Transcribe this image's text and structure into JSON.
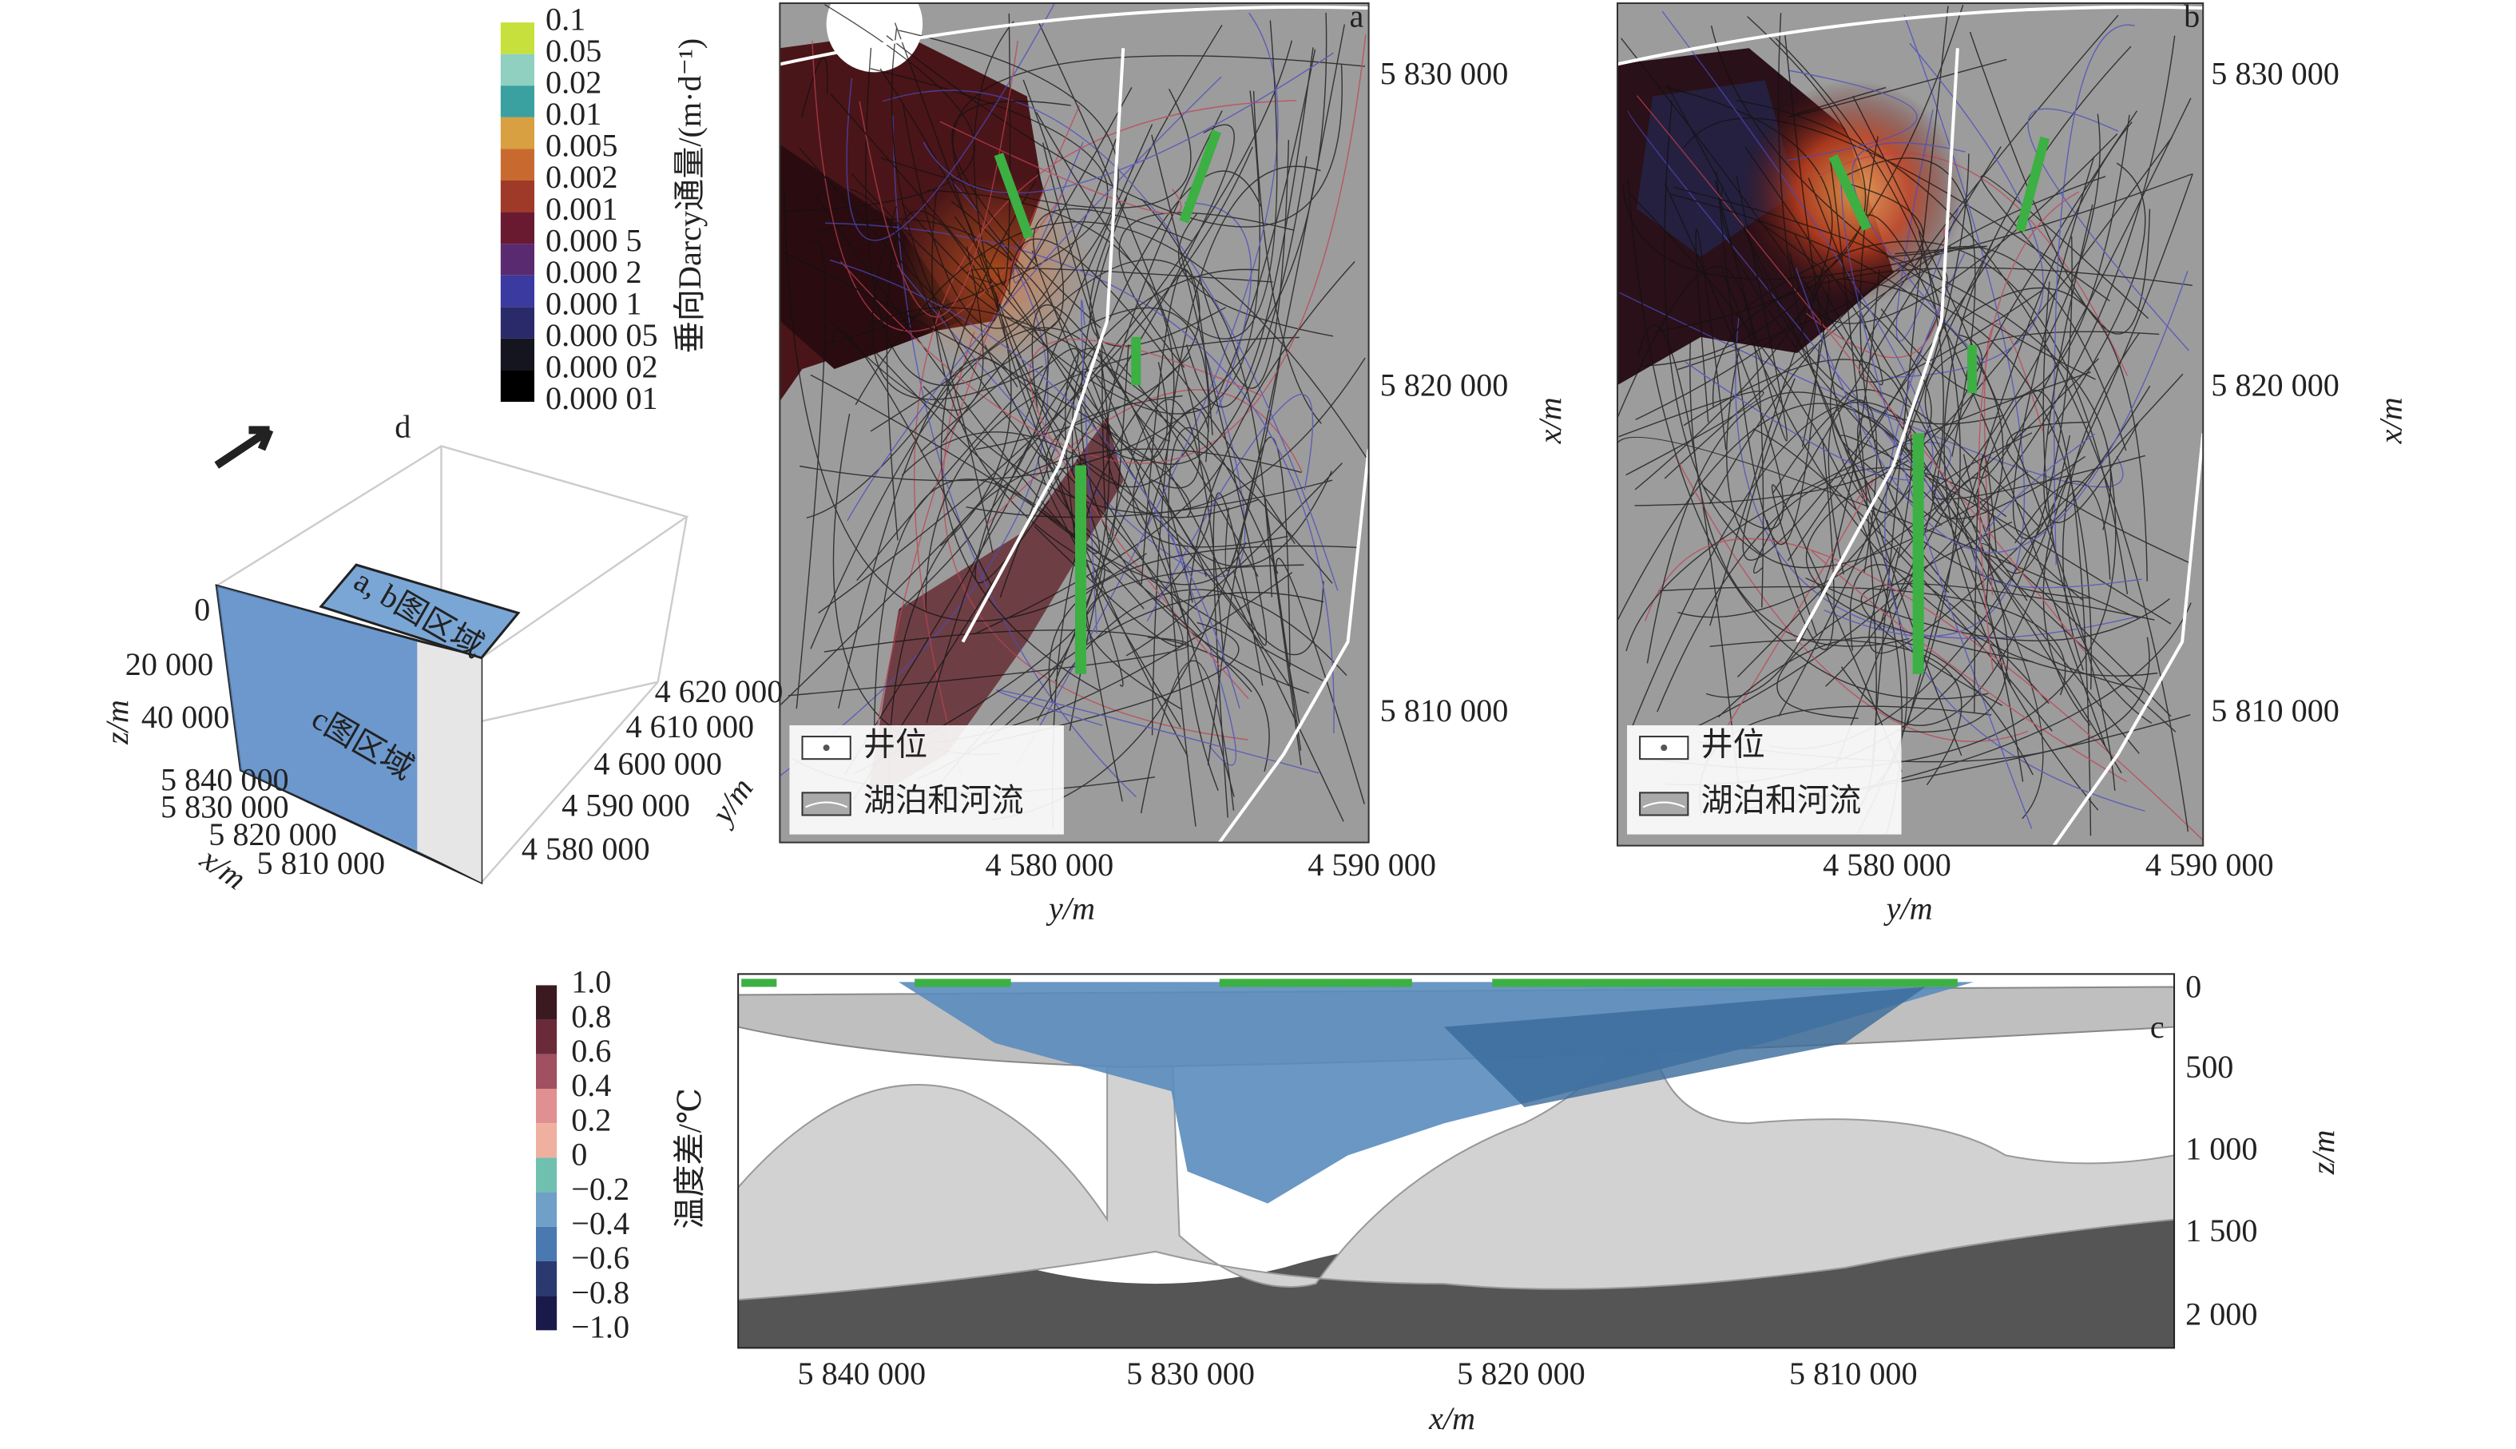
{
  "colorbar_flux": {
    "title": "垂向Darcy通量/(m·d⁻¹)",
    "labels": [
      "0.1",
      "0.05",
      "0.02",
      "0.01",
      "0.005",
      "0.002",
      "0.001",
      "0.000 5",
      "0.000 2",
      "0.000 1",
      "0.000 05",
      "0.000 02",
      "0.000 01"
    ]
  },
  "panel_a": {
    "label": "a",
    "x_ticks": [
      "4 580 000",
      "4 590 000"
    ],
    "x_label": "y/m",
    "y_ticks": [
      "5 830 000",
      "5 820 000",
      "5 810 000"
    ],
    "y_label": "x/m",
    "legend": [
      "井位",
      "湖泊和河流"
    ]
  },
  "panel_b": {
    "label": "b",
    "x_ticks": [
      "4 580 000",
      "4 590 000"
    ],
    "x_label": "y/m",
    "y_ticks": [
      "5 830 000",
      "5 820 000",
      "5 810 000"
    ],
    "y_label": "x/m",
    "legend": [
      "井位",
      "湖泊和河流"
    ]
  },
  "panel_d": {
    "label": "d",
    "z_ticks": [
      "0",
      "20 000",
      "40 000"
    ],
    "z_label": "z/m",
    "x_ticks": [
      "5 840 000",
      "5 830 000",
      "5 820 000",
      "5 810 000"
    ],
    "x_label": "x/m",
    "y_ticks": [
      "4 620 000",
      "4 610 000",
      "4 600 000",
      "4 590 000",
      "4 580 000"
    ],
    "y_label": "y/m",
    "region_ab": "a, b图区域",
    "region_c": "c图区域"
  },
  "colorbar_temp": {
    "title": "温度差/℃",
    "labels": [
      "1.0",
      "0.8",
      "0.6",
      "0.4",
      "0.2",
      "0",
      "−0.2",
      "−0.4",
      "−0.6",
      "−0.8",
      "−1.0"
    ]
  },
  "panel_c": {
    "label": "c",
    "x_ticks": [
      "5 840 000",
      "5 830 000",
      "5 820 000",
      "5 810 000"
    ],
    "x_label": "x/m",
    "z_ticks": [
      "0",
      "500",
      "1 000",
      "1 500",
      "2 000"
    ],
    "z_label": "z/m"
  }
}
